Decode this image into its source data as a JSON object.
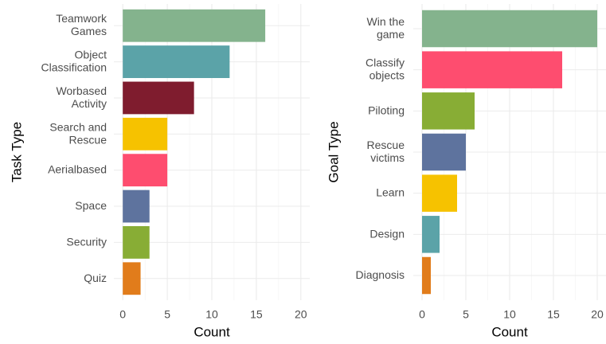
{
  "chart_data": [
    {
      "type": "barh",
      "y_label": "Task Type",
      "x_label": "Count",
      "categories": [
        [
          "Teamwork",
          "Games"
        ],
        [
          "Object",
          "Classification"
        ],
        [
          "Worbased",
          "Activity"
        ],
        [
          "Search and",
          "Rescue"
        ],
        [
          "Aerialbased"
        ],
        [
          "Space"
        ],
        [
          "Security"
        ],
        [
          "Quiz"
        ]
      ],
      "values": [
        16,
        12,
        8,
        5,
        5,
        3,
        3,
        2
      ],
      "colors": [
        "#84b38d",
        "#5ba3a8",
        "#7f1c2e",
        "#f6c200",
        "#fe4d6f",
        "#5e739e",
        "#88ad35",
        "#e17c1b"
      ],
      "xlim": [
        -1,
        21
      ],
      "xticks": [
        0,
        5,
        10,
        15,
        20
      ],
      "grid": true
    },
    {
      "type": "barh",
      "y_label": "Goal Type",
      "x_label": "Count",
      "categories": [
        [
          "Win the",
          "game"
        ],
        [
          "Classify",
          "objects"
        ],
        [
          "Piloting"
        ],
        [
          "Rescue",
          "victims"
        ],
        [
          "Learn"
        ],
        [
          "Design"
        ],
        [
          "Diagnosis"
        ]
      ],
      "values": [
        20,
        16,
        6,
        5,
        4,
        2,
        1
      ],
      "colors": [
        "#84b38d",
        "#fe4d6f",
        "#88ad35",
        "#5e739e",
        "#f6c200",
        "#5ba3a8",
        "#e17c1b"
      ],
      "xlim": [
        -1,
        21
      ],
      "xticks": [
        0,
        5,
        10,
        15,
        20
      ],
      "grid": true
    }
  ]
}
